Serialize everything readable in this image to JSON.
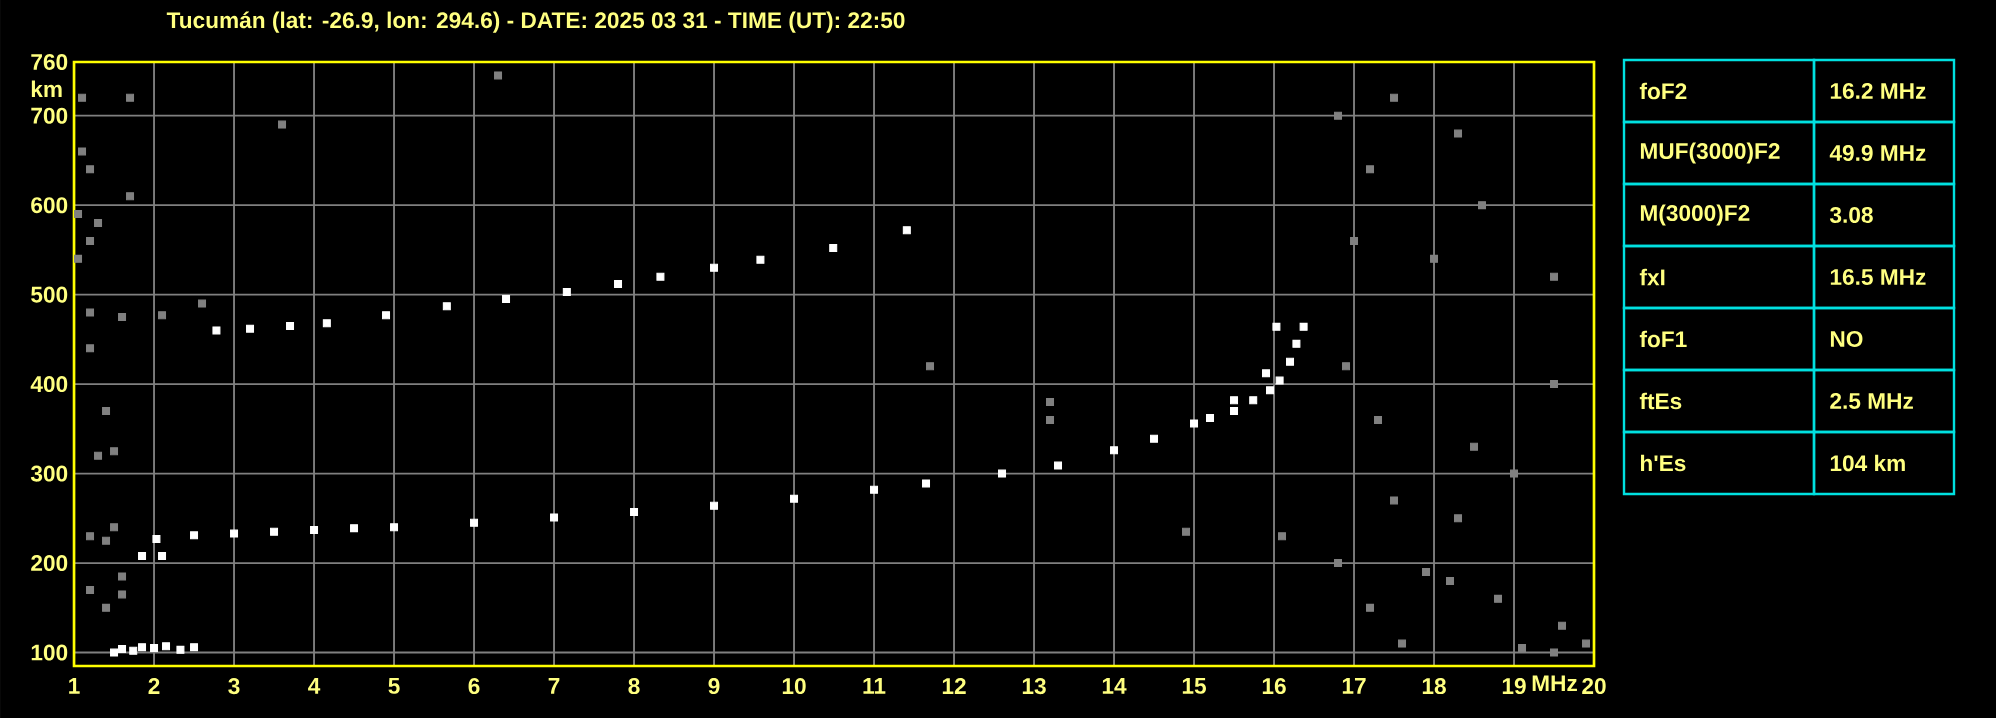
{
  "chart_data": {
    "type": "scatter",
    "title": "Tucumán (lat: -26.9, lon: 294.6) - DATE: 2025 03 31 - TIME (UT): 22:50",
    "xlabel": "MHz",
    "ylabel": "km",
    "xlim": [
      1,
      20
    ],
    "xticks": [
      1,
      2,
      3,
      4,
      5,
      6,
      7,
      8,
      9,
      10,
      11,
      12,
      13,
      14,
      15,
      16,
      17,
      18,
      19,
      20
    ],
    "ylim": [
      85,
      760
    ],
    "yticks": [
      100,
      200,
      300,
      400,
      500,
      600,
      700,
      760
    ],
    "grid": true,
    "marker": "square",
    "annotations": [
      "foF2",
      "16.2 MHz",
      "MUF(3000)F2",
      "49.9 MHz",
      "M(3000)F2",
      "3.08",
      "fxI",
      "16.5 MHz",
      "foF1",
      "NO",
      "ftEs",
      "2.5 MHz",
      "h'Es",
      "104 km"
    ],
    "series": [
      {
        "type": "scatter",
        "color": "#ffffff",
        "x": [
          2.03,
          2.5,
          3,
          3.5,
          4,
          4.5,
          5,
          6,
          7,
          8,
          9,
          10,
          11,
          11.65,
          12.6,
          13.3,
          14,
          14.5,
          15,
          15.5,
          15.9,
          16.03
        ],
        "values": [
          227,
          231,
          233,
          235,
          237,
          239,
          240,
          245,
          251,
          257,
          264,
          272,
          282,
          289,
          300,
          309,
          326,
          339,
          356,
          382,
          412,
          464
        ]
      },
      {
        "type": "scatter",
        "color": "#ffffff",
        "x": [
          15.2,
          15.5,
          15.74,
          15.95,
          16.07,
          16.2,
          16.28,
          16.37
        ],
        "values": [
          362,
          370,
          382,
          393,
          404,
          425,
          445,
          464
        ]
      },
      {
        "type": "scatter",
        "color": "#ffffff",
        "x": [
          2.78,
          3.2,
          3.7,
          4.16,
          4.9,
          5.66,
          6.4,
          7.16,
          7.8,
          8.33,
          9,
          9.58,
          10.49,
          11.41
        ],
        "values": [
          460,
          462,
          465,
          468,
          477,
          487,
          495,
          503,
          512,
          520,
          530,
          539,
          552,
          572
        ]
      },
      {
        "type": "scatter",
        "color": "#ffffff",
        "x": [
          1.5,
          1.6,
          1.74,
          1.85,
          2.0,
          2.15,
          2.33,
          2.5,
          1.85,
          2.1
        ],
        "values": [
          100,
          104,
          102,
          106,
          105,
          107,
          103,
          106,
          208,
          208
        ]
      },
      {
        "type": "scatter",
        "color": "#808080",
        "x": [
          1.1,
          1.1,
          1.2,
          1.05,
          1.2,
          1.05,
          1.3,
          1.7,
          1.7,
          1.2,
          1.6,
          2.1,
          2.6,
          1.2,
          1.4,
          1.3,
          1.5,
          1.2,
          1.4,
          1.5,
          1.2,
          1.4,
          1.6,
          1.6,
          6.3,
          3.6,
          16.8,
          17.2,
          17.5,
          18.3,
          18.6,
          17.0,
          18.0,
          19.5,
          16.9,
          17.3,
          18.5,
          19.5,
          17.5,
          19.0,
          17.9,
          18.2,
          17.2,
          18.8,
          19.6,
          19.1,
          19.5,
          13.2,
          13.2,
          11.7,
          14.9,
          16.1,
          16.8,
          17.6,
          18.3,
          19.9
        ],
        "values": [
          720,
          660,
          640,
          590,
          560,
          540,
          580,
          720,
          610,
          480,
          475,
          477,
          490,
          440,
          370,
          320,
          325,
          230,
          225,
          240,
          170,
          150,
          165,
          185,
          745,
          690,
          700,
          640,
          720,
          680,
          600,
          560,
          540,
          520,
          420,
          360,
          330,
          400,
          270,
          300,
          190,
          180,
          150,
          160,
          130,
          105,
          100,
          380,
          360,
          420,
          235,
          230,
          200,
          110,
          250,
          110
        ]
      }
    ]
  }
}
